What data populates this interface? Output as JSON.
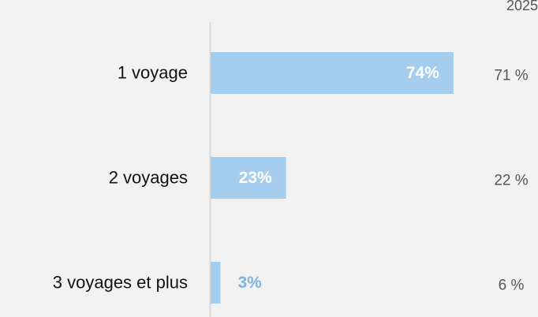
{
  "chart_data": {
    "type": "bar",
    "categories": [
      "1 voyage",
      "2 voyages",
      "3 voyages et plus"
    ],
    "values": [
      74,
      23,
      3
    ],
    "value_labels": [
      "74%",
      "23%",
      "3%"
    ],
    "color": "#a5cdee",
    "comparison": {
      "name": "2025",
      "values": [
        71,
        22,
        6
      ],
      "value_labels": [
        "71 %",
        "22 %",
        "6 %"
      ]
    }
  }
}
